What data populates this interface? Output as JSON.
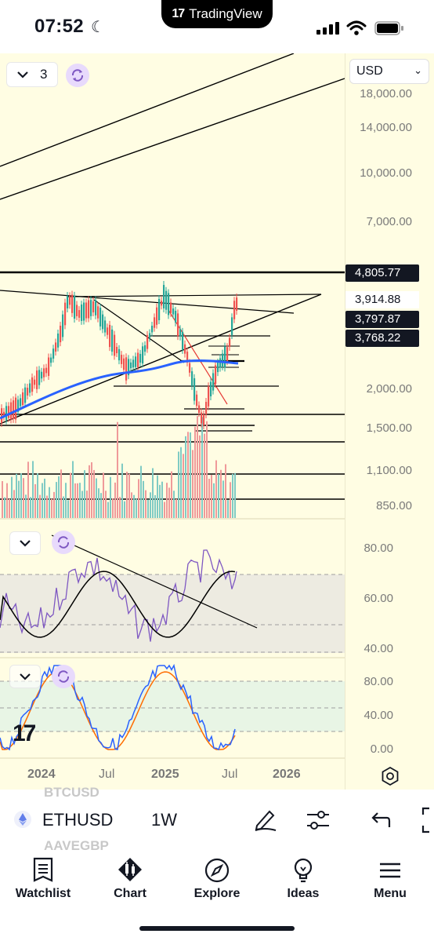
{
  "status_bar": {
    "time": "07:52",
    "moon_icon": "☾"
  },
  "island": {
    "brand": "TradingView",
    "logo": "17"
  },
  "chart": {
    "layout_count": "3",
    "currency": "USD",
    "price_scale": [
      "18,000.00",
      "14,000.00",
      "10,000.00",
      "7,000.00",
      "2,000.00",
      "1,500.00",
      "1,100.00",
      "850.00"
    ],
    "price_tags": [
      {
        "value": "4,805.77",
        "style": "dark"
      },
      {
        "value": "3,914.88",
        "style": "light"
      },
      {
        "value": "3,797.87",
        "style": "dark"
      },
      {
        "value": "3,768.22",
        "style": "dark"
      }
    ],
    "rsi_scale": [
      "80.00",
      "60.00",
      "40.00"
    ],
    "stoch_scale": [
      "80.00",
      "40.00",
      "0.00"
    ],
    "time_axis": [
      {
        "label": "2024",
        "bold": true
      },
      {
        "label": "Jul",
        "bold": false
      },
      {
        "label": "2025",
        "bold": true
      },
      {
        "label": "Jul",
        "bold": false
      },
      {
        "label": "2026",
        "bold": true
      }
    ],
    "watermark_logo": "17",
    "colors": {
      "background": "#fffde3",
      "candle_up": "#26a69a",
      "candle_down": "#ef5350",
      "ma": "#2962ff",
      "rsi": "#7e57c2",
      "stoch_k": "#2962ff",
      "stoch_d": "#ff6d00"
    }
  },
  "symbol_bar": {
    "symbol": "ETHUSD",
    "interval": "1W",
    "ghost_above": "BTCUSD",
    "ghost_below": "AAVEGBP",
    "icons": [
      "pen-icon",
      "sliders-icon",
      "undo-icon",
      "fullscreen-icon"
    ]
  },
  "nav": [
    {
      "label": "Watchlist",
      "icon": "watchlist-icon"
    },
    {
      "label": "Chart",
      "icon": "chart-icon"
    },
    {
      "label": "Explore",
      "icon": "compass-icon"
    },
    {
      "label": "Ideas",
      "icon": "lightbulb-icon"
    },
    {
      "label": "Menu",
      "icon": "menu-icon"
    }
  ]
}
